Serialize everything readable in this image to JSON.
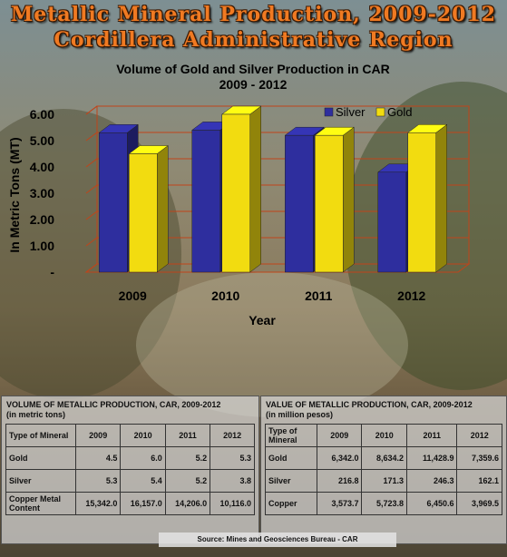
{
  "page_title": [
    "Metallic Mineral Production, 2009-2012",
    "Cordillera Administrative Region"
  ],
  "chart_data": {
    "type": "bar",
    "title": [
      "Volume of Gold and Silver Production in CAR",
      "2009 - 2012"
    ],
    "categories": [
      "2009",
      "2010",
      "2011",
      "2012"
    ],
    "series": [
      {
        "name": "Silver",
        "values": [
          5.3,
          5.4,
          5.2,
          3.8
        ]
      },
      {
        "name": "Gold",
        "values": [
          4.5,
          6.0,
          5.2,
          5.3
        ]
      }
    ],
    "xlabel": "Year",
    "ylabel": "In Metric Tons (MT)",
    "ylim": [
      0,
      6.0
    ],
    "yticks": [
      "-",
      "1.00",
      "2.00",
      "3.00",
      "4.00",
      "5.00",
      "6.00"
    ],
    "grid": true,
    "legend_position": "top-right",
    "colors": {
      "Silver": "#2e2e9e",
      "Gold": "#f2dc10"
    }
  },
  "volume_table": {
    "title": "VOLUME OF METALLIC PRODUCTION, CAR, 2009-2012",
    "subtitle": "(in metric tons)",
    "columns": [
      "Type of Mineral",
      "2009",
      "2010",
      "2011",
      "2012"
    ],
    "rows": [
      [
        "Gold",
        "4.5",
        "6.0",
        "5.2",
        "5.3"
      ],
      [
        "Silver",
        "5.3",
        "5.4",
        "5.2",
        "3.8"
      ],
      [
        "Copper Metal Content",
        "15,342.0",
        "16,157.0",
        "14,206.0",
        "10,116.0"
      ]
    ]
  },
  "value_table": {
    "title": "VALUE OF METALLIC PRODUCTION, CAR, 2009-2012",
    "subtitle": "(in million pesos)",
    "columns": [
      "Type of Mineral",
      "2009",
      "2010",
      "2011",
      "2012"
    ],
    "rows": [
      [
        "Gold",
        "6,342.0",
        "8,634.2",
        "11,428.9",
        "7,359.6"
      ],
      [
        "Silver",
        "216.8",
        "171.3",
        "246.3",
        "162.1"
      ],
      [
        "Copper",
        "3,573.7",
        "5,723.8",
        "6,450.6",
        "3,969.5"
      ]
    ]
  },
  "source": "Source: Mines and Geosciences Bureau - CAR"
}
